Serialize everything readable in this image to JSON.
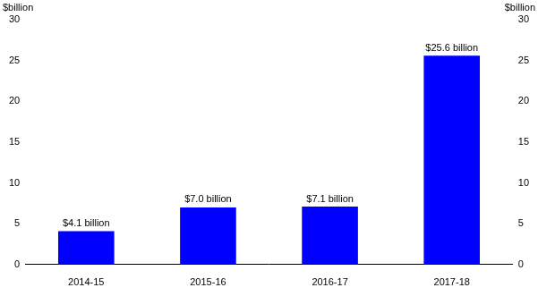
{
  "chart_data": {
    "type": "bar",
    "categories": [
      "2014-15",
      "2015-16",
      "2016-17",
      "2017-18"
    ],
    "values": [
      4.1,
      7.0,
      7.1,
      25.6
    ],
    "value_labels": [
      "$4.1 billion",
      "$7.0 billion",
      "$7.1 billion",
      "$25.6 billion"
    ],
    "data_labels": true,
    "color": "#0000ff",
    "ylabel": "$billion",
    "ylim": [
      0,
      30
    ],
    "yticks": [
      0,
      5,
      10,
      15,
      20,
      25,
      30
    ],
    "y2label": "$billion",
    "y2lim": [
      0,
      30
    ],
    "y2ticks": [
      0,
      5,
      10,
      15,
      20,
      25,
      30
    ],
    "grid": false
  }
}
